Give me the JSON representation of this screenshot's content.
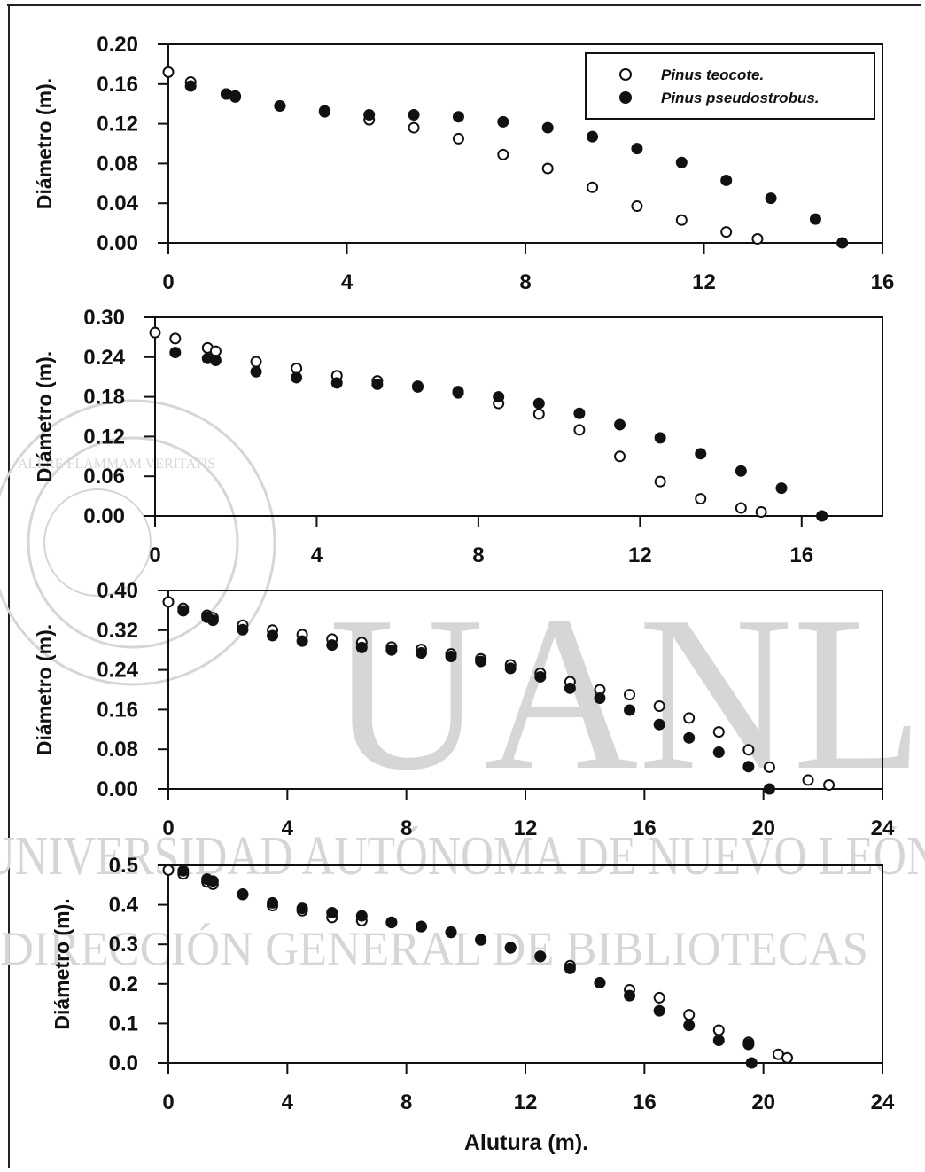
{
  "watermark": {
    "initials": "UANL",
    "university": "UNIVERSIDAD AUTÓNOMA DE NUEVO LEÓN",
    "library": "DIRECCIÓN GENERAL DE BIBLIOTECAS",
    "seal_text": "UNIVERSIDAD AUTÓNOMA DE NUEVO LEÓN",
    "seal_motto": "ALERE FLAMMAM VERITATIS"
  },
  "chart_data": [
    {
      "type": "scatter",
      "xlim": [
        0,
        16
      ],
      "xticks": [
        0,
        4,
        8,
        12,
        16
      ],
      "ylim": [
        0,
        0.2
      ],
      "yticks": [
        "0.00",
        "0.04",
        "0.08",
        "0.12",
        "0.16",
        "0.20"
      ],
      "ylabel": "Diámetro (m).",
      "legend": "top-right",
      "series": [
        {
          "name": "Pinus teocote.",
          "marker": "open-circle",
          "x": [
            0,
            0.5,
            1.3,
            1.5,
            2.5,
            3.5,
            4.5,
            5.5,
            6.5,
            7.5,
            8.5,
            9.5,
            10.5,
            11.5,
            12.5,
            13.2
          ],
          "y": [
            0.172,
            0.162,
            0.15,
            0.148,
            0.138,
            0.132,
            0.124,
            0.116,
            0.105,
            0.089,
            0.075,
            0.056,
            0.037,
            0.023,
            0.011,
            0.004
          ]
        },
        {
          "name": "Pinus pseudostrobus.",
          "marker": "filled-circle",
          "x": [
            0.5,
            1.3,
            1.5,
            2.5,
            3.5,
            4.5,
            5.5,
            6.5,
            7.5,
            8.5,
            9.5,
            10.5,
            11.5,
            12.5,
            13.5,
            14.5,
            15.1
          ],
          "y": [
            0.158,
            0.15,
            0.147,
            0.138,
            0.133,
            0.129,
            0.129,
            0.127,
            0.122,
            0.116,
            0.107,
            0.095,
            0.081,
            0.063,
            0.045,
            0.024,
            0.0
          ]
        }
      ]
    },
    {
      "type": "scatter",
      "xlim": [
        0,
        18
      ],
      "xticks": [
        0,
        4,
        8,
        12,
        16
      ],
      "ylim": [
        0,
        0.3
      ],
      "yticks": [
        "0.00",
        "0.06",
        "0.12",
        "0.18",
        "0.24",
        "0.30"
      ],
      "ylabel": "Diámetro (m).",
      "series": [
        {
          "name": "Pinus teocote.",
          "marker": "open-circle",
          "x": [
            0,
            0.5,
            1.3,
            1.5,
            2.5,
            3.5,
            4.5,
            5.5,
            6.5,
            7.5,
            8.5,
            9.5,
            10.5,
            11.5,
            12.5,
            13.5,
            14.5,
            15
          ],
          "y": [
            0.277,
            0.268,
            0.254,
            0.249,
            0.233,
            0.223,
            0.212,
            0.204,
            0.195,
            0.186,
            0.17,
            0.154,
            0.13,
            0.09,
            0.052,
            0.026,
            0.012,
            0.006
          ]
        },
        {
          "name": "Pinus pseudostrobus.",
          "marker": "filled-circle",
          "x": [
            0.5,
            1.3,
            1.5,
            2.5,
            3.5,
            4.5,
            5.5,
            6.5,
            7.5,
            8.5,
            9.5,
            10.5,
            11.5,
            12.5,
            13.5,
            14.5,
            15.5,
            16.5
          ],
          "y": [
            0.247,
            0.238,
            0.235,
            0.218,
            0.209,
            0.201,
            0.199,
            0.196,
            0.188,
            0.18,
            0.17,
            0.155,
            0.138,
            0.118,
            0.094,
            0.068,
            0.042,
            0.0
          ]
        }
      ]
    },
    {
      "type": "scatter",
      "xlim": [
        0,
        24
      ],
      "xticks": [
        0,
        4,
        8,
        12,
        16,
        20,
        24
      ],
      "ylim": [
        0,
        0.4
      ],
      "yticks": [
        "0.00",
        "0.08",
        "0.16",
        "0.24",
        "0.32",
        "0.40"
      ],
      "ylabel": "Diámetro (m).",
      "series": [
        {
          "name": "Pinus teocote.",
          "marker": "open-circle",
          "x": [
            0,
            0.5,
            1.3,
            1.5,
            2.5,
            3.5,
            4.5,
            5.5,
            6.5,
            7.5,
            8.5,
            9.5,
            10.5,
            11.5,
            12.5,
            13.5,
            14.5,
            15.5,
            16.5,
            17.5,
            18.5,
            19.5,
            20.2,
            21.5,
            22.2
          ],
          "y": [
            0.377,
            0.364,
            0.35,
            0.345,
            0.33,
            0.32,
            0.311,
            0.302,
            0.295,
            0.286,
            0.281,
            0.272,
            0.262,
            0.25,
            0.233,
            0.216,
            0.2,
            0.19,
            0.167,
            0.143,
            0.115,
            0.079,
            0.044,
            0.018,
            0.008
          ]
        },
        {
          "name": "Pinus pseudostrobus.",
          "marker": "filled-circle",
          "x": [
            0.5,
            1.3,
            1.5,
            2.5,
            3.5,
            4.5,
            5.5,
            6.5,
            7.5,
            8.5,
            9.5,
            10.5,
            11.5,
            12.5,
            13.5,
            14.5,
            15.5,
            16.5,
            17.5,
            18.5,
            19.5,
            20.2
          ],
          "y": [
            0.359,
            0.346,
            0.34,
            0.321,
            0.309,
            0.298,
            0.29,
            0.285,
            0.28,
            0.274,
            0.267,
            0.257,
            0.243,
            0.226,
            0.203,
            0.183,
            0.159,
            0.13,
            0.103,
            0.074,
            0.045,
            0.0
          ]
        }
      ]
    },
    {
      "type": "scatter",
      "xlim": [
        0,
        24
      ],
      "xticks": [
        0,
        4,
        8,
        12,
        16,
        20,
        24
      ],
      "ylim": [
        0,
        0.5
      ],
      "yticks": [
        "0.0",
        "0.1",
        "0.2",
        "0.3",
        "0.4",
        "0.5"
      ],
      "ylabel": "Diámetro (m).",
      "xlabel": "Alutura (m).",
      "series": [
        {
          "name": "Pinus teocote.",
          "marker": "open-circle",
          "x": [
            0,
            0.5,
            1.3,
            1.5,
            2.5,
            3.5,
            4.5,
            5.5,
            6.5,
            7.5,
            8.5,
            9.5,
            10.5,
            11.5,
            12.5,
            13.5,
            14.5,
            15.5,
            16.5,
            17.5,
            18.5,
            19.5,
            20.5,
            20.8
          ],
          "y": [
            0.488,
            0.478,
            0.458,
            0.452,
            0.426,
            0.398,
            0.385,
            0.368,
            0.36,
            0.355,
            0.345,
            0.33,
            0.312,
            0.292,
            0.27,
            0.246,
            0.203,
            0.185,
            0.165,
            0.122,
            0.083,
            0.052,
            0.022,
            0.013
          ]
        },
        {
          "name": "Pinus pseudostrobus.",
          "marker": "filled-circle",
          "x": [
            0.5,
            1.3,
            1.5,
            2.5,
            3.5,
            4.5,
            5.5,
            6.5,
            7.5,
            8.5,
            9.5,
            10.5,
            11.5,
            12.5,
            13.5,
            14.5,
            15.5,
            16.5,
            17.5,
            18.5,
            19.5,
            19.6
          ],
          "y": [
            0.486,
            0.465,
            0.46,
            0.427,
            0.405,
            0.391,
            0.38,
            0.372,
            0.356,
            0.345,
            0.331,
            0.311,
            0.291,
            0.269,
            0.239,
            0.203,
            0.17,
            0.132,
            0.095,
            0.057,
            0.047,
            0.0
          ]
        }
      ]
    }
  ]
}
